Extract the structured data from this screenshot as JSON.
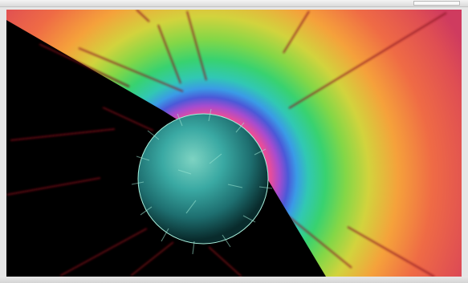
{
  "window": {
    "title": ""
  },
  "scene": {
    "background_colors": [
      "#cf3b5a",
      "#ef6649",
      "#f29a3a",
      "#d8d036",
      "#75d24d",
      "#41d06f",
      "#3bc5ac",
      "#3c8ce5",
      "#5b4ec7",
      "#9b4cc2",
      "#dc4ea8",
      "#e43a49"
    ],
    "shadow_color": "#000000",
    "sphere_color": "#45b7ad",
    "streak_color": "#8b1420"
  },
  "statusbar": {
    "text": ""
  }
}
